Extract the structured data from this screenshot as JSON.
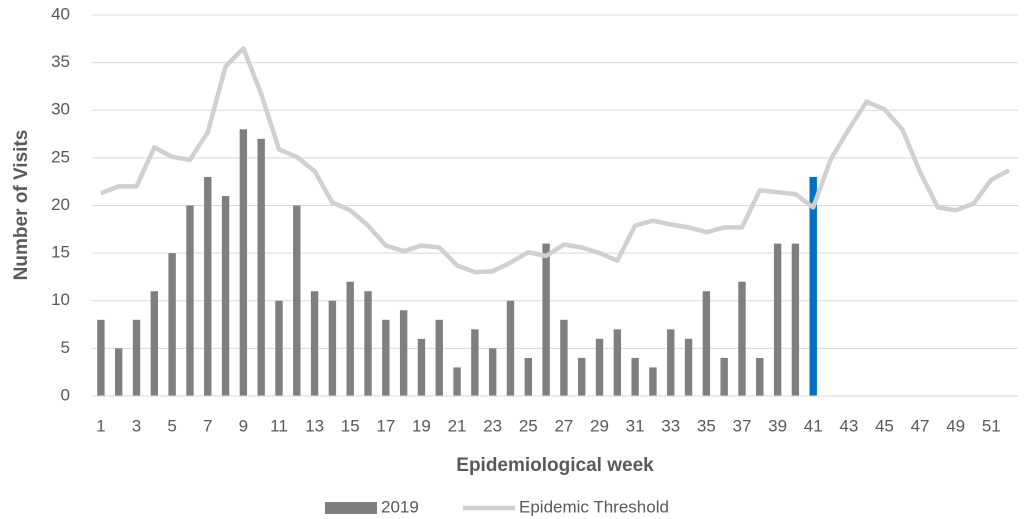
{
  "chart_data": {
    "type": "bar_line",
    "x_label": "Epidemiological week",
    "y_label": "Number of Visits",
    "categories": [
      "1",
      null,
      "3",
      null,
      "5",
      null,
      "7",
      null,
      "9",
      null,
      "11",
      null,
      "13",
      null,
      "15",
      null,
      "17",
      null,
      "19",
      null,
      "21",
      null,
      "23",
      null,
      "25",
      null,
      "27",
      null,
      "29",
      null,
      "31",
      null,
      "33",
      null,
      "35",
      null,
      "37",
      null,
      "39",
      null,
      "41",
      null,
      "43",
      null,
      "45",
      null,
      "47",
      null,
      "49",
      null,
      "51",
      null
    ],
    "series": [
      {
        "name": "2019",
        "type": "bar",
        "color": "#7f7f7f",
        "values": [
          8,
          5,
          8,
          11,
          15,
          20,
          23,
          21,
          28,
          27,
          10,
          20,
          11,
          10,
          12,
          11,
          8,
          9,
          6,
          8,
          3,
          7,
          5,
          10,
          4,
          16,
          8,
          4,
          6,
          7,
          4,
          3,
          7,
          6,
          11,
          4,
          12,
          4,
          16,
          16,
          23,
          null,
          null,
          null,
          null,
          null,
          null,
          null,
          null,
          null,
          null,
          null
        ],
        "colors": [
          "#7f7f7f",
          "#7f7f7f",
          "#7f7f7f",
          "#7f7f7f",
          "#7f7f7f",
          "#7f7f7f",
          "#7f7f7f",
          "#7f7f7f",
          "#7f7f7f",
          "#7f7f7f",
          "#7f7f7f",
          "#7f7f7f",
          "#7f7f7f",
          "#7f7f7f",
          "#7f7f7f",
          "#7f7f7f",
          "#7f7f7f",
          "#7f7f7f",
          "#7f7f7f",
          "#7f7f7f",
          "#7f7f7f",
          "#7f7f7f",
          "#7f7f7f",
          "#7f7f7f",
          "#7f7f7f",
          "#7f7f7f",
          "#7f7f7f",
          "#7f7f7f",
          "#7f7f7f",
          "#7f7f7f",
          "#7f7f7f",
          "#7f7f7f",
          "#7f7f7f",
          "#7f7f7f",
          "#7f7f7f",
          "#7f7f7f",
          "#7f7f7f",
          "#7f7f7f",
          "#7f7f7f",
          "#7f7f7f",
          "#0070c0",
          null,
          null,
          null,
          null,
          null,
          null,
          null,
          null,
          null,
          null,
          null
        ]
      },
      {
        "name": "Epidemic Threshold",
        "type": "line",
        "color": "#d0d0d0",
        "values": [
          21.3,
          22,
          22,
          26.1,
          25.1,
          24.8,
          27.7,
          34.6,
          36.5,
          31.7,
          25.9,
          25.1,
          23.6,
          20.3,
          19.5,
          17.9,
          15.8,
          15.2,
          15.8,
          15.6,
          13.7,
          13,
          13.1,
          14,
          15.1,
          14.7,
          15.9,
          15.6,
          15,
          14.2,
          17.9,
          18.4,
          18,
          17.7,
          17.2,
          17.7,
          17.7,
          21.6,
          21.4,
          21.2,
          19.8,
          24.9,
          28,
          30.9,
          30.1,
          28,
          23.5,
          19.8,
          19.5,
          20.2,
          22.7,
          23.7
        ]
      }
    ],
    "ylim": [
      0,
      40
    ],
    "yticks": [
      0,
      5,
      10,
      15,
      20,
      25,
      30,
      35,
      40
    ],
    "grid": true,
    "legend": "bottom"
  }
}
